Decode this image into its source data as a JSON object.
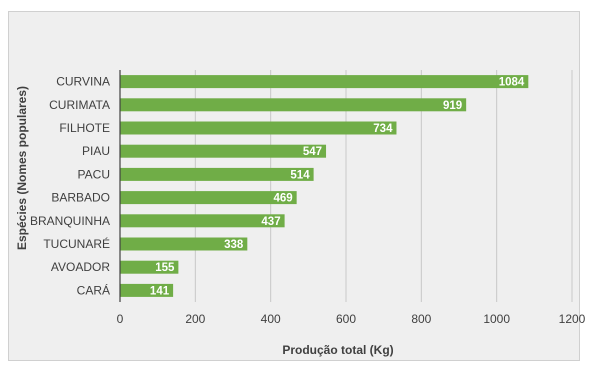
{
  "chart_data": {
    "type": "bar",
    "orientation": "horizontal",
    "categories": [
      "CURVINA",
      "CURIMATA",
      "FILHOTE",
      "PIAU",
      "PACU",
      "BARBADO",
      "BRANQUINHA",
      "TUCUNARÉ",
      "AVOADOR",
      "CARÁ"
    ],
    "values": [
      1084,
      919,
      734,
      547,
      514,
      469,
      437,
      338,
      155,
      141
    ],
    "xlabel": "Produção total (Kg)",
    "ylabel": "Espécies (Nomes populares)",
    "xlim": [
      0,
      1200
    ],
    "xticks": [
      0,
      200,
      400,
      600,
      800,
      1000,
      1200
    ],
    "grid": true,
    "data_labels": true,
    "bar_color": "#70ad47",
    "background_color": "#efefef"
  }
}
